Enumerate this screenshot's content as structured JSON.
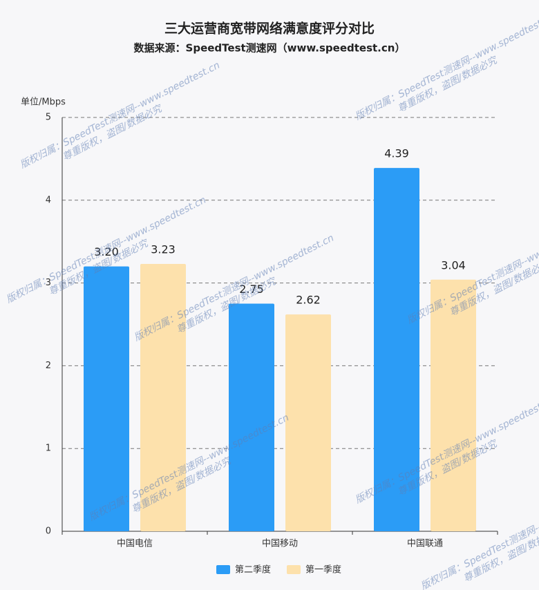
{
  "chart_data": {
    "type": "bar",
    "title": "三大运营商宽带网络满意度评分对比",
    "subtitle": "数据来源：SpeedTest测速网（www.speedtest.cn）",
    "y_label": "单位/Mbps",
    "categories": [
      "中国电信",
      "中国移动",
      "中国联通"
    ],
    "series": [
      {
        "name": "第二季度",
        "color": "#2b9cf6",
        "values": [
          3.2,
          2.75,
          4.39
        ],
        "value_labels": [
          "3.20",
          "2.75",
          "4.39"
        ]
      },
      {
        "name": "第一季度",
        "color": "#fde1ac",
        "values": [
          3.23,
          2.62,
          3.04
        ],
        "value_labels": [
          "3.23",
          "2.62",
          "3.04"
        ]
      }
    ],
    "ylim": [
      0,
      5
    ],
    "yticks": [
      0,
      1,
      2,
      3,
      4,
      5
    ],
    "grid": true,
    "watermark": [
      "版权归属：SpeedTest测速网--www.speedtest.cn",
      "尊重版权，盗图/数据必究"
    ]
  }
}
